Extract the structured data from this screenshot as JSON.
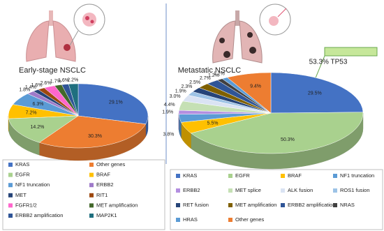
{
  "chart_data": [
    {
      "type": "pie",
      "title": "Early-stage NSCLC",
      "categories": [
        "KRAS",
        "Other genes",
        "EGFR",
        "BRAF",
        "NF1 truncation",
        "ERBB2",
        "MET",
        "RIT1",
        "FGFR1/2",
        "MET amplification",
        "ERBB2 amplification",
        "MAP2K1"
      ],
      "values": [
        29.1,
        30.3,
        14.2,
        7.2,
        6.3,
        1.8,
        1.4,
        1.6,
        2.6,
        1.7,
        1.6,
        2.2
      ],
      "value_labels": [
        "29.1%",
        "30.3%",
        "14.2%",
        "7.2%",
        "6.3%",
        "1.8%",
        "1.4%",
        "1.6%",
        "2.6%",
        "1.7%",
        "1.6%",
        "2.2%"
      ],
      "colors": [
        "#4472c4",
        "#ed7d31",
        "#a9d18e",
        "#ffc000",
        "#5b9bd5",
        "#9e7ac9",
        "#264478",
        "#9e480e",
        "#ff66cc",
        "#43682b",
        "#2f5597",
        "#1f6f7f"
      ]
    },
    {
      "type": "pie",
      "title": "Metastatic NSCLC",
      "annotation": "53.3% TP53",
      "categories": [
        "KRAS",
        "EGFR",
        "BRAF",
        "NF1 truncation",
        "ERBB2",
        "MET splice",
        "ALK fusion",
        "ROS1 fusion",
        "RET fusion",
        "MET amplification",
        "ERBB2 amplification",
        "NRAS",
        "HRAS",
        "Other genes"
      ],
      "values": [
        29.5,
        50.3,
        5.5,
        3.8,
        1.9,
        4.4,
        3.0,
        1.9,
        2.3,
        2.5,
        2.7,
        1.2,
        1.2,
        9.4
      ],
      "value_labels": [
        "29.5%",
        "50.3%",
        "5.5%",
        "3.8%",
        "1.9%",
        "4.4%",
        "3.0%",
        "1.9%",
        "2.3%",
        "2.5%",
        "2.7%",
        "1.2%",
        "1.2%",
        "9.4%"
      ],
      "colors": [
        "#4472c4",
        "#a9d18e",
        "#ffc000",
        "#5b9bd5",
        "#b38ee0",
        "#c5e0b4",
        "#dae3f3",
        "#9dc3e6",
        "#264478",
        "#7f6000",
        "#2f5597",
        "#404040",
        "#5b9bd5",
        "#ed7d31"
      ]
    }
  ]
}
